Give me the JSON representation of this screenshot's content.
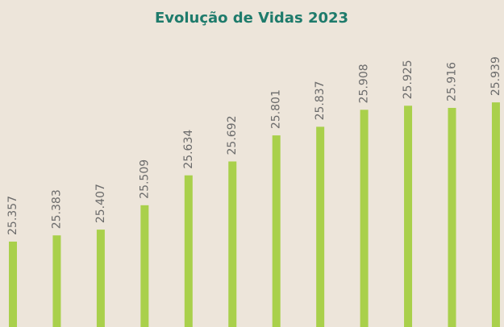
{
  "chart_data": {
    "type": "bar",
    "title": "Evolução de Vidas 2023",
    "values": [
      25357,
      25383,
      25407,
      25509,
      25634,
      25692,
      25801,
      25837,
      25908,
      25925,
      25916,
      25939
    ],
    "value_labels": [
      "25.357",
      "25.383",
      "25.407",
      "25.509",
      "25.634",
      "25.692",
      "25.801",
      "25.837",
      "25.908",
      "25.925",
      "25.916",
      "25.939"
    ],
    "color": "#a9d04b",
    "ylim": [
      25000,
      26000
    ]
  }
}
